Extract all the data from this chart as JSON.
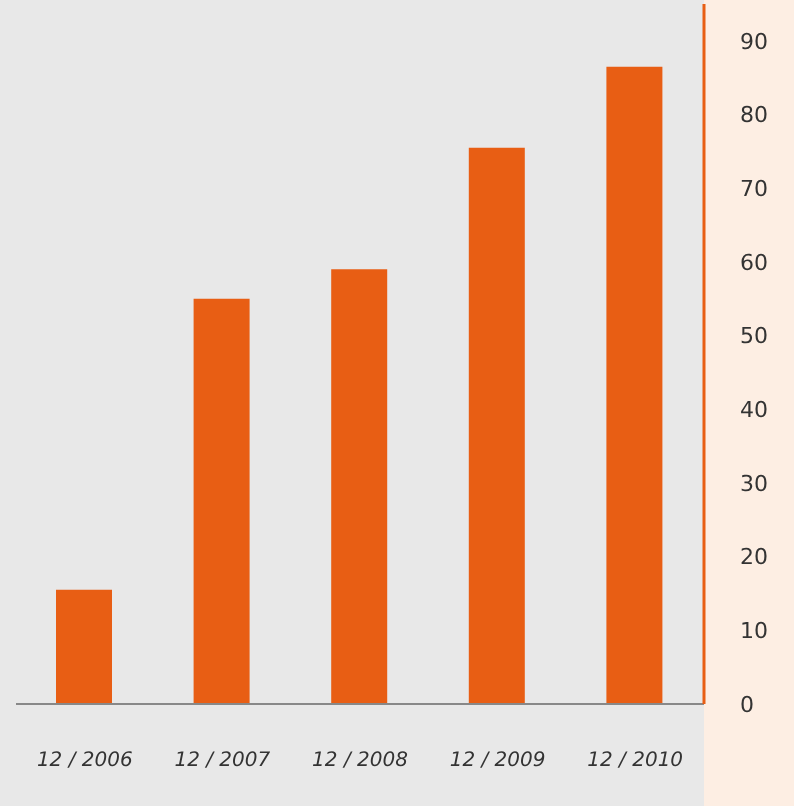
{
  "chart_data": {
    "type": "bar",
    "categories": [
      "12 / 2006",
      "12 / 2007",
      "12 / 2008",
      "12 / 2009",
      "12 / 2010"
    ],
    "values": [
      15.5,
      55,
      59,
      75.5,
      86.5
    ],
    "color": "#e85e14",
    "ylim": [
      0,
      95
    ],
    "yticks": [
      0,
      10,
      20,
      30,
      40,
      50,
      60,
      70,
      80,
      90
    ],
    "grid": false
  }
}
